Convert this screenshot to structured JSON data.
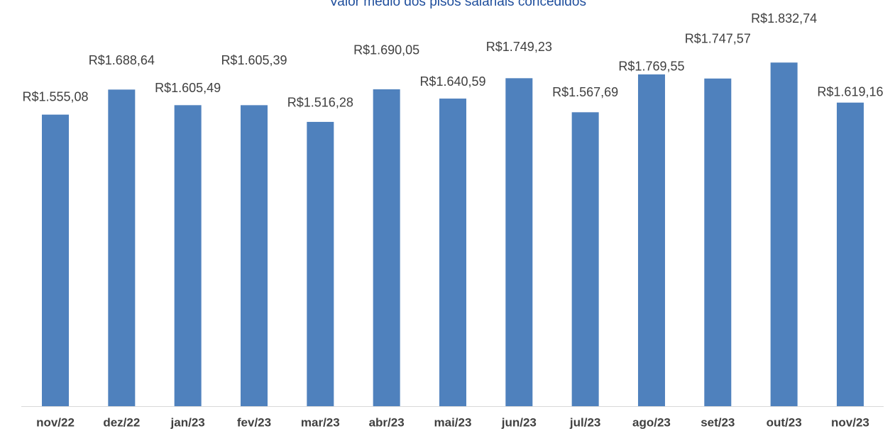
{
  "chart_data": {
    "type": "bar",
    "title": "Valor médio dos pisos salariais concedidos",
    "categories": [
      "nov/22",
      "dez/22",
      "jan/23",
      "fev/23",
      "mar/23",
      "abr/23",
      "mai/23",
      "jun/23",
      "jul/23",
      "ago/23",
      "set/23",
      "out/23",
      "nov/23"
    ],
    "values": [
      1555.08,
      1688.64,
      1605.49,
      1605.39,
      1516.28,
      1690.05,
      1640.59,
      1749.23,
      1567.69,
      1769.55,
      1747.57,
      1832.74,
      1619.16
    ],
    "value_labels": [
      "R$1.555,08",
      "R$1.688,64",
      "R$1.605,49",
      "R$1.605,39",
      "R$1.516,28",
      "R$1.690,05",
      "R$1.640,59",
      "R$1.749,23",
      "R$1.567,69",
      "R$1.769,55",
      "R$1.747,57",
      "R$1.832,74",
      "R$1.619,16"
    ],
    "color": "#4f81bd",
    "ylim": [
      0,
      2000
    ]
  }
}
